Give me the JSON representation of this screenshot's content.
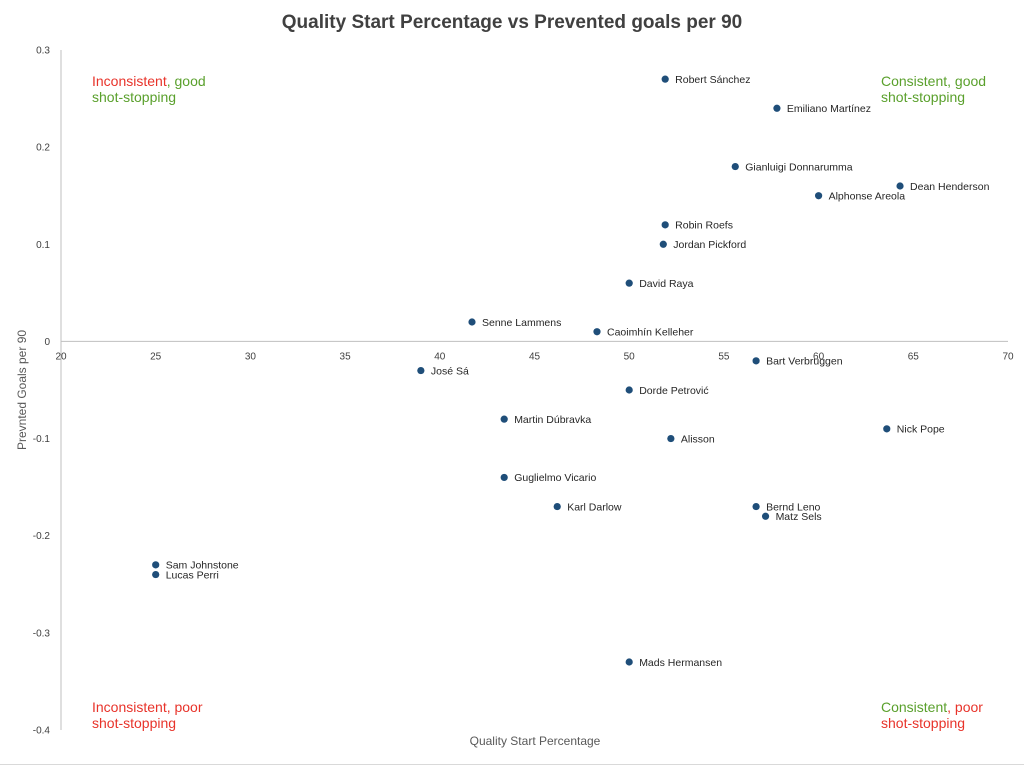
{
  "colors": {
    "point": "#1f4e79",
    "axis": "#bfbfbf",
    "red": "#e8332a",
    "green": "#5aa02c",
    "text": "#404040"
  },
  "chart_data": {
    "type": "scatter",
    "title": "Quality Start Percentage vs Prevented goals per 90",
    "xlabel": "Quality Start Percentage",
    "ylabel": "Prevnted Goals per 90",
    "xlim": [
      20,
      70
    ],
    "ylim": [
      -0.4,
      0.3
    ],
    "x_ticks": [
      20,
      25,
      30,
      35,
      40,
      45,
      50,
      55,
      60,
      65,
      70
    ],
    "y_ticks": [
      -0.4,
      -0.3,
      -0.2,
      -0.1,
      0,
      0.1,
      0.2,
      0.3
    ],
    "y_tick_labels": [
      "-0.4",
      "-0.3",
      "-0.2",
      "-0.1",
      "0",
      "0.1",
      "0.2",
      "0.3"
    ],
    "grid": false,
    "points": [
      {
        "label": "Robert Sánchez",
        "x": 51.9,
        "y": 0.27
      },
      {
        "label": "Emiliano Martínez",
        "x": 57.8,
        "y": 0.24
      },
      {
        "label": "Gianluigi Donnarumma",
        "x": 55.6,
        "y": 0.18
      },
      {
        "label": "Dean Henderson",
        "x": 64.3,
        "y": 0.16
      },
      {
        "label": "Alphonse Areola",
        "x": 60.0,
        "y": 0.15
      },
      {
        "label": "Robin Roefs",
        "x": 51.9,
        "y": 0.12
      },
      {
        "label": "Jordan Pickford",
        "x": 51.8,
        "y": 0.1
      },
      {
        "label": "David Raya",
        "x": 50.0,
        "y": 0.06
      },
      {
        "label": "Senne Lammens",
        "x": 41.7,
        "y": 0.02
      },
      {
        "label": "Caoimhín Kelleher",
        "x": 48.3,
        "y": 0.01
      },
      {
        "label": "Bart Verbruggen",
        "x": 56.7,
        "y": -0.02
      },
      {
        "label": "José Sá",
        "x": 39.0,
        "y": -0.03
      },
      {
        "label": "Dorde Petrović",
        "x": 50.0,
        "y": -0.05
      },
      {
        "label": "Martin Dúbravka",
        "x": 43.4,
        "y": -0.08
      },
      {
        "label": "Nick Pope",
        "x": 63.6,
        "y": -0.09
      },
      {
        "label": "Alisson",
        "x": 52.2,
        "y": -0.1
      },
      {
        "label": "Guglielmo Vicario",
        "x": 43.4,
        "y": -0.14
      },
      {
        "label": "Karl Darlow",
        "x": 46.2,
        "y": -0.17
      },
      {
        "label": "Bernd Leno",
        "x": 56.7,
        "y": -0.17
      },
      {
        "label": "Matz Sels",
        "x": 57.2,
        "y": -0.18
      },
      {
        "label": "Sam Johnstone",
        "x": 25.0,
        "y": -0.23
      },
      {
        "label": "Lucas Perri",
        "x": 25.0,
        "y": -0.24
      },
      {
        "label": "Mads Hermansen",
        "x": 50.0,
        "y": -0.33
      }
    ],
    "annotations": {
      "top_left": [
        [
          {
            "text": "Inconsistent",
            "color": "red"
          },
          {
            "text": ", good",
            "color": "green"
          }
        ],
        [
          {
            "text": "shot-stopping",
            "color": "green"
          }
        ]
      ],
      "top_right": [
        [
          {
            "text": "Consistent, good",
            "color": "green"
          }
        ],
        [
          {
            "text": "shot-stopping",
            "color": "green"
          }
        ]
      ],
      "bottom_left": [
        [
          {
            "text": "Inconsistent, poor",
            "color": "red"
          }
        ],
        [
          {
            "text": "shot-stopping",
            "color": "red"
          }
        ]
      ],
      "bottom_right": [
        [
          {
            "text": "Consistent",
            "color": "green"
          },
          {
            "text": ", poor",
            "color": "red"
          }
        ],
        [
          {
            "text": "shot-stopping",
            "color": "red"
          }
        ]
      ]
    }
  }
}
